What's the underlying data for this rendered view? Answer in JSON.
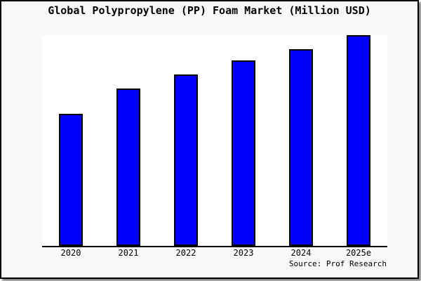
{
  "window": {
    "background": "#f8f8f8",
    "border_color": "#000000",
    "shadow_color": "#8a8a8a"
  },
  "chart_data": {
    "type": "bar",
    "title": "Global Polypropylene (PP) Foam Market (Million USD)",
    "categories": [
      "2020",
      "2021",
      "2022",
      "2023",
      "2024",
      "2025e"
    ],
    "values": [
      62.7,
      74.7,
      81.3,
      88,
      93.5,
      100
    ],
    "values_note": "No y-axis, gridlines or data labels are shown; values are relative bar heights with 2025e = 100 (tallest bar reaches the top of the plot area)",
    "xlabel": "",
    "ylabel": "",
    "ylim": [
      0,
      100
    ],
    "grid": false,
    "legend": "none",
    "bar_fill": "#0000FF",
    "bar_border": "#000000",
    "plot_background": "#FFFFFF",
    "source": "Source: Prof Research"
  }
}
